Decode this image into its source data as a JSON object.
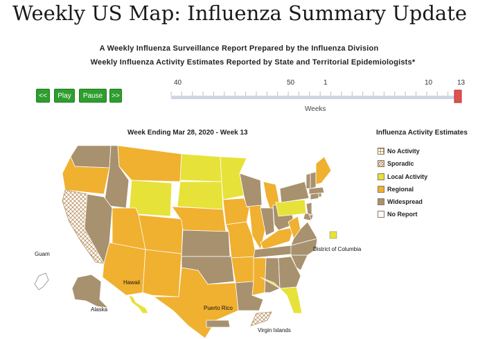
{
  "page": {
    "title": "Weekly US Map: Influenza Summary Update",
    "subtitle1": "A Weekly Influenza Surveillance Report Prepared by the Influenza Division",
    "subtitle2": "Weekly Influenza Activity Estimates Reported by State and Territorial Epidemiologists*"
  },
  "controls": {
    "rewind": "<<",
    "play": "Play",
    "pause": "Pause",
    "forward": ">>"
  },
  "slider": {
    "tick_labels": [
      "40",
      "50",
      "1",
      "10",
      "13"
    ],
    "axis_label": "Weeks",
    "current_week": 13
  },
  "map": {
    "title": "Week Ending Mar 28, 2020 - Week 13",
    "labels": {
      "guam": "Guam",
      "hawaii": "Hawaii",
      "alaska": "Alaska",
      "puerto_rico": "Puerto Rico",
      "virgin_islands": "Virgin Islands",
      "dc": "District of Columbia"
    }
  },
  "legend": {
    "title": "Influenza Activity Estimates",
    "items": [
      {
        "label": "No Activity",
        "color": "#ffffff",
        "pattern": "grid"
      },
      {
        "label": "Sporadic",
        "color": "#ffffff",
        "pattern": "cross"
      },
      {
        "label": "Local Activity",
        "color": "#e6e23a",
        "pattern": "solid"
      },
      {
        "label": "Regional",
        "color": "#f0b030",
        "pattern": "solid"
      },
      {
        "label": "Widespread",
        "color": "#a8916e",
        "pattern": "solid"
      },
      {
        "label": "No Report",
        "color": "#ffffff",
        "pattern": "solid"
      }
    ]
  },
  "colors": {
    "button": "#2e9e2e",
    "slider_track": "#cfd6e3",
    "slider_thumb": "#e05050",
    "regional": "#f0b030",
    "widespread": "#a8916e",
    "local": "#e6e23a"
  }
}
